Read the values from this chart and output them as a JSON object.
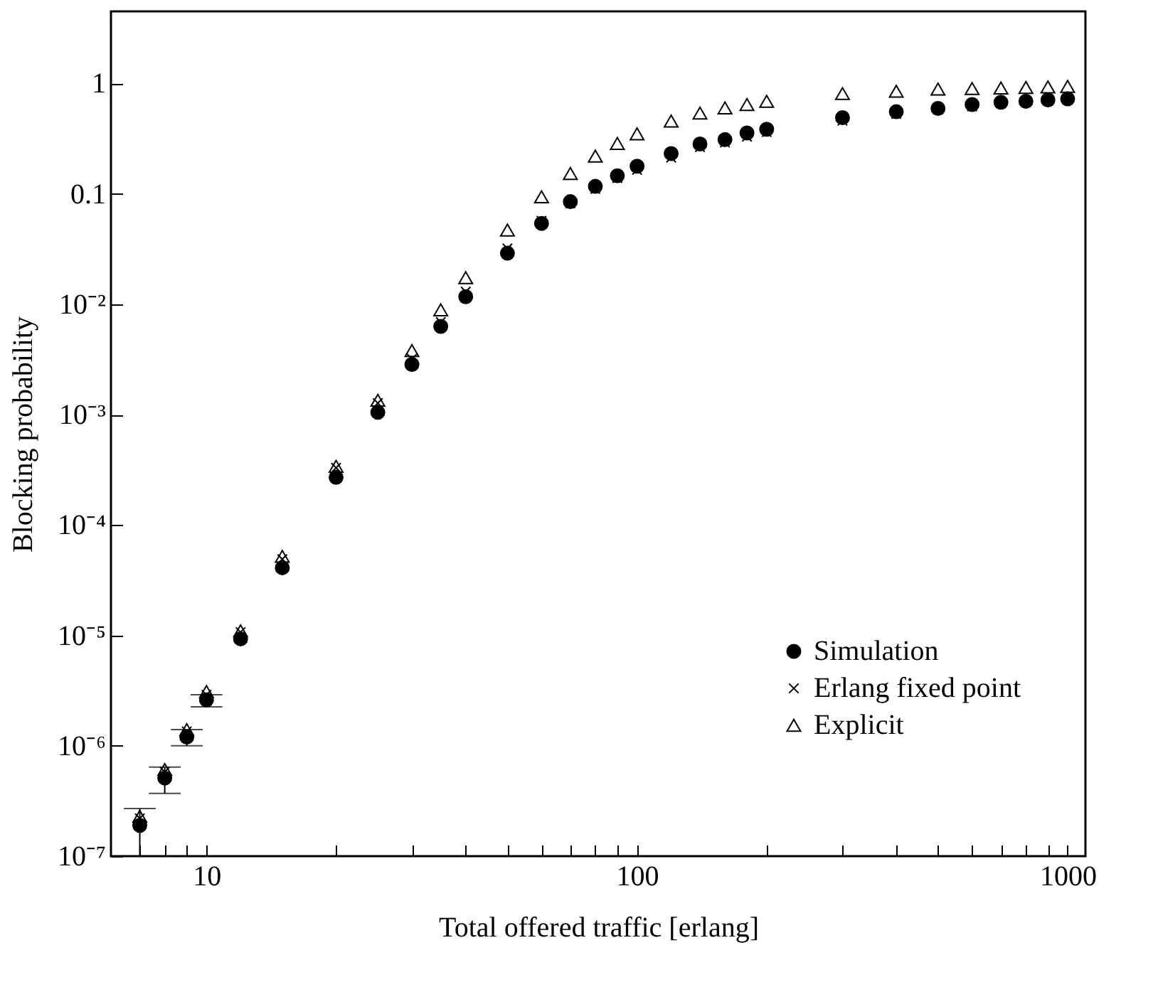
{
  "chart_data": {
    "type": "scatter",
    "xlabel": "Total offered traffic [erlang]",
    "ylabel": "Blocking probability",
    "log": "xy",
    "grid": false,
    "legend": "bottom right",
    "x": [
      7,
      8,
      9,
      10,
      12,
      15,
      20,
      25,
      30,
      35,
      40,
      50,
      60,
      70,
      80,
      90,
      100,
      120,
      140,
      160,
      180,
      200,
      300,
      400,
      500,
      600,
      700,
      800,
      900,
      1000
    ],
    "xlim": [
      6,
      1100
    ],
    "xticks": [
      {
        "value": 7,
        "label": null
      },
      {
        "value": 8,
        "label": null
      },
      {
        "value": 9,
        "label": null
      },
      10,
      {
        "value": 20,
        "label": null
      },
      {
        "value": 30,
        "label": null
      },
      {
        "value": 40,
        "label": null
      },
      {
        "value": 50,
        "label": null
      },
      {
        "value": 60,
        "label": null
      },
      {
        "value": 70,
        "label": null
      },
      {
        "value": 80,
        "label": null
      },
      {
        "value": 90,
        "label": null
      },
      100,
      {
        "value": 200,
        "label": null
      },
      {
        "value": 300,
        "label": null
      },
      {
        "value": 400,
        "label": null
      },
      {
        "value": 500,
        "label": null
      },
      {
        "value": 600,
        "label": null
      },
      {
        "value": 700,
        "label": null
      },
      {
        "value": 800,
        "label": null
      },
      {
        "value": 900,
        "label": null
      },
      1000
    ],
    "ylim": [
      1e-07,
      4.5
    ],
    "yticks": [
      {
        "value": 1e-07,
        "label": "10⁻⁷"
      },
      {
        "value": 1e-06,
        "label": "10⁻⁶"
      },
      {
        "value": 1e-05,
        "label": "10⁻⁵"
      },
      {
        "value": 0.0001,
        "label": "10⁻⁴"
      },
      {
        "value": 0.001,
        "label": "10⁻³"
      },
      {
        "value": 0.01,
        "label": "10⁻²"
      },
      0.1,
      1
    ],
    "series": [
      {
        "name": "Simulation",
        "color": "#000000",
        "marker": "circle",
        "values": [
          1.9e-07,
          5.1e-07,
          1.2e-06,
          2.6e-06,
          9.3e-06,
          4.1e-05,
          0.00027,
          0.00105,
          0.00285,
          0.0063,
          0.0117,
          0.029,
          0.054,
          0.085,
          0.117,
          0.146,
          0.178,
          0.232,
          0.283,
          0.31,
          0.356,
          0.385,
          0.49,
          0.555,
          0.595,
          0.645,
          0.676,
          0.69,
          0.71,
          0.725
        ],
        "errors": [
          [
            1e-07,
            2.7e-07
          ],
          [
            3.7e-07,
            6.4e-07
          ],
          [
            1e-06,
            1.4e-06
          ],
          [
            2.25e-06,
            2.9e-06
          ],
          null,
          null,
          null,
          null,
          null,
          null,
          null,
          null,
          null,
          null,
          null,
          null,
          null,
          null,
          null,
          null,
          null,
          null,
          null,
          null,
          null,
          null,
          null,
          null,
          null,
          null
        ]
      },
      {
        "name": "Erlang fixed point",
        "color": "#000000",
        "marker": "cross",
        "values": [
          2.2e-07,
          5.8e-07,
          1.35e-06,
          2.9e-06,
          1.07e-05,
          4.9e-05,
          0.00033,
          0.00127,
          0.0032,
          0.0069,
          0.013,
          0.032,
          0.057,
          0.082,
          0.111,
          0.139,
          0.165,
          0.213,
          0.265,
          0.292,
          0.33,
          0.363,
          0.46,
          0.53,
          0.58,
          0.62,
          0.66,
          0.676,
          0.7,
          0.71
        ]
      },
      {
        "name": "Explicit",
        "color": "#000000",
        "marker": "triangle",
        "values": [
          2.3e-07,
          6.1e-07,
          1.4e-06,
          3.1e-06,
          1.1e-05,
          5.2e-05,
          0.00034,
          0.00135,
          0.0038,
          0.0089,
          0.0174,
          0.047,
          0.094,
          0.153,
          0.22,
          0.286,
          0.35,
          0.457,
          0.54,
          0.6,
          0.645,
          0.69,
          0.81,
          0.85,
          0.89,
          0.9,
          0.91,
          0.92,
          0.93,
          0.94
        ]
      }
    ]
  }
}
